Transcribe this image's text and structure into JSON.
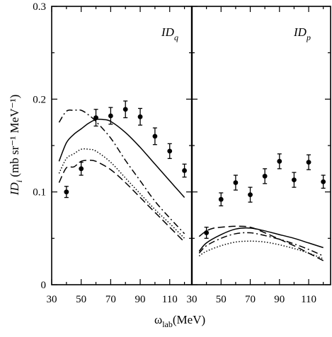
{
  "chart_data": [
    {
      "type": "line",
      "panel_label": {
        "main": "ID",
        "sub": "q"
      },
      "xlabel": {
        "main": "ω",
        "sub": "lab",
        "suffix": "(MeV)"
      },
      "ylabel": {
        "main": "ID",
        "sub": "i",
        "unit": " (mb sr⁻¹ MeV⁻¹)"
      },
      "xlim": [
        30,
        125
      ],
      "ylim": [
        0,
        0.3
      ],
      "xticks": [
        30,
        50,
        70,
        90,
        110
      ],
      "xtick_labels": [
        "30",
        "50",
        "70",
        "90",
        "110"
      ],
      "yticks": [
        0,
        0.1,
        0.2,
        0.3
      ],
      "ytick_labels": [
        "0",
        "0.1",
        "0.2",
        "0.3"
      ],
      "series": [
        {
          "style": "solid",
          "x": [
            35,
            40,
            45,
            50,
            55,
            60,
            65,
            70,
            80,
            90,
            100,
            110,
            120
          ],
          "y": [
            0.133,
            0.153,
            0.162,
            0.168,
            0.174,
            0.178,
            0.178,
            0.176,
            0.164,
            0.148,
            0.13,
            0.112,
            0.094
          ]
        },
        {
          "style": "dash-dot",
          "x": [
            35,
            40,
            45,
            50,
            55,
            60,
            70,
            80,
            90,
            100,
            110,
            120
          ],
          "y": [
            0.175,
            0.187,
            0.188,
            0.188,
            0.183,
            0.176,
            0.158,
            0.134,
            0.112,
            0.09,
            0.072,
            0.055
          ]
        },
        {
          "style": "dotted",
          "x": [
            35,
            40,
            45,
            50,
            55,
            60,
            70,
            80,
            90,
            100,
            110,
            120
          ],
          "y": [
            0.12,
            0.136,
            0.141,
            0.146,
            0.146,
            0.144,
            0.132,
            0.115,
            0.098,
            0.081,
            0.066,
            0.05
          ]
        },
        {
          "style": "dashed",
          "x": [
            35,
            40,
            45,
            50,
            55,
            60,
            70,
            80,
            90,
            100,
            110,
            120
          ],
          "y": [
            0.11,
            0.126,
            0.127,
            0.133,
            0.134,
            0.133,
            0.124,
            0.11,
            0.094,
            0.078,
            0.062,
            0.046
          ]
        }
      ],
      "points": {
        "x": [
          40,
          50,
          60,
          70,
          80,
          90,
          100,
          110,
          120
        ],
        "y": [
          0.1,
          0.125,
          0.18,
          0.182,
          0.189,
          0.181,
          0.16,
          0.144,
          0.123
        ],
        "err": [
          0.006,
          0.007,
          0.009,
          0.009,
          0.009,
          0.009,
          0.009,
          0.008,
          0.007
        ]
      }
    },
    {
      "type": "line",
      "panel_label": {
        "main": "ID",
        "sub": "p"
      },
      "xlim": [
        30,
        125
      ],
      "ylim": [
        0,
        0.3
      ],
      "xticks": [
        30,
        50,
        70,
        90,
        110
      ],
      "xtick_labels": [
        "30",
        "50",
        "70",
        "90",
        "110"
      ],
      "yticks": [
        0,
        0.1,
        0.2,
        0.3
      ],
      "series": [
        {
          "style": "solid",
          "x": [
            35,
            40,
            50,
            60,
            70,
            80,
            90,
            100,
            110,
            120
          ],
          "y": [
            0.036,
            0.045,
            0.054,
            0.06,
            0.061,
            0.058,
            0.054,
            0.05,
            0.045,
            0.04
          ]
        },
        {
          "style": "dash-dot",
          "x": [
            35,
            40,
            50,
            60,
            70,
            80,
            90,
            100,
            110,
            120
          ],
          "y": [
            0.034,
            0.042,
            0.05,
            0.055,
            0.056,
            0.053,
            0.049,
            0.044,
            0.038,
            0.031
          ]
        },
        {
          "style": "dotted",
          "x": [
            35,
            40,
            50,
            60,
            70,
            80,
            90,
            100,
            110,
            120
          ],
          "y": [
            0.031,
            0.036,
            0.042,
            0.046,
            0.047,
            0.046,
            0.043,
            0.039,
            0.034,
            0.028
          ]
        },
        {
          "style": "dashed",
          "x": [
            35,
            40,
            45,
            50,
            60,
            70,
            80,
            90,
            100,
            110,
            120
          ],
          "y": [
            0.052,
            0.058,
            0.061,
            0.062,
            0.063,
            0.062,
            0.056,
            0.049,
            0.042,
            0.034,
            0.026
          ]
        }
      ],
      "points": {
        "x": [
          40,
          50,
          60,
          70,
          80,
          90,
          100,
          110,
          120
        ],
        "y": [
          0.056,
          0.092,
          0.11,
          0.097,
          0.117,
          0.133,
          0.113,
          0.132,
          0.111
        ],
        "err": [
          0.006,
          0.007,
          0.008,
          0.008,
          0.008,
          0.008,
          0.008,
          0.008,
          0.007
        ]
      }
    }
  ]
}
